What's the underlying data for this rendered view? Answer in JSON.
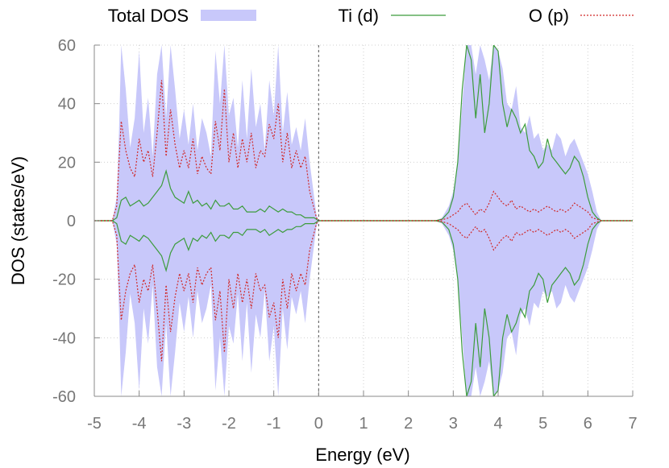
{
  "chart_data": {
    "type": "area",
    "title": "",
    "xlabel": "Energy (eV)",
    "ylabel": "DOS (states/eV)",
    "xlim": [
      -5,
      7
    ],
    "ylim": [
      -60,
      60
    ],
    "xticks": [
      "-5",
      "-4",
      "-3",
      "-2",
      "-1",
      "0",
      "1",
      "2",
      "3",
      "4",
      "5",
      "6",
      "7"
    ],
    "yticks": [
      "60",
      "40",
      "20",
      "0",
      "-20",
      "-40",
      "-60"
    ],
    "grid": true,
    "legend_position": "top",
    "fermi_level": 0,
    "mirrored": true,
    "series": [
      {
        "name": "Total DOS",
        "style": "filled-area",
        "color": "#c8c8fa",
        "x": [
          -5.0,
          -4.6,
          -4.5,
          -4.45,
          -4.4,
          -4.3,
          -4.2,
          -4.1,
          -4.0,
          -3.9,
          -3.8,
          -3.7,
          -3.6,
          -3.5,
          -3.4,
          -3.3,
          -3.2,
          -3.1,
          -3.0,
          -2.9,
          -2.8,
          -2.7,
          -2.6,
          -2.5,
          -2.4,
          -2.3,
          -2.2,
          -2.1,
          -2.0,
          -1.9,
          -1.8,
          -1.7,
          -1.6,
          -1.5,
          -1.4,
          -1.3,
          -1.2,
          -1.1,
          -1.0,
          -0.9,
          -0.8,
          -0.7,
          -0.6,
          -0.5,
          -0.4,
          -0.3,
          -0.2,
          -0.1,
          -0.05,
          0.0,
          2.6,
          2.75,
          2.9,
          3.0,
          3.1,
          3.2,
          3.3,
          3.4,
          3.5,
          3.6,
          3.7,
          3.8,
          3.9,
          4.0,
          4.1,
          4.2,
          4.3,
          4.4,
          4.5,
          4.6,
          4.7,
          4.8,
          4.9,
          5.0,
          5.1,
          5.2,
          5.3,
          5.4,
          5.5,
          5.6,
          5.7,
          5.8,
          5.9,
          6.0,
          6.1,
          6.2,
          6.3,
          7.0
        ],
        "values": [
          0,
          0,
          8,
          30,
          60,
          45,
          25,
          35,
          58,
          30,
          42,
          22,
          50,
          60,
          35,
          60,
          45,
          28,
          38,
          26,
          40,
          24,
          35,
          30,
          22,
          58,
          40,
          60,
          36,
          42,
          25,
          48,
          28,
          52,
          32,
          40,
          24,
          48,
          36,
          60,
          30,
          44,
          26,
          32,
          24,
          35,
          20,
          8,
          2,
          0,
          0,
          1,
          5,
          10,
          20,
          40,
          60,
          60,
          50,
          60,
          55,
          48,
          60,
          58,
          52,
          40,
          38,
          46,
          32,
          30,
          36,
          28,
          30,
          24,
          26,
          24,
          30,
          28,
          22,
          26,
          28,
          24,
          20,
          16,
          10,
          3,
          0,
          0
        ]
      },
      {
        "name": "Ti (d)",
        "style": "solid-line",
        "color": "#3c9c3c",
        "x": [
          -5.0,
          -4.6,
          -4.5,
          -4.45,
          -4.4,
          -4.3,
          -4.2,
          -4.1,
          -4.0,
          -3.9,
          -3.8,
          -3.7,
          -3.6,
          -3.5,
          -3.4,
          -3.3,
          -3.2,
          -3.1,
          -3.0,
          -2.9,
          -2.8,
          -2.7,
          -2.6,
          -2.5,
          -2.4,
          -2.3,
          -2.2,
          -2.1,
          -2.0,
          -1.9,
          -1.8,
          -1.7,
          -1.6,
          -1.5,
          -1.4,
          -1.3,
          -1.2,
          -1.1,
          -1.0,
          -0.9,
          -0.8,
          -0.7,
          -0.6,
          -0.5,
          -0.4,
          -0.3,
          -0.2,
          -0.1,
          -0.05,
          0.0,
          2.6,
          2.75,
          2.9,
          3.0,
          3.1,
          3.2,
          3.3,
          3.4,
          3.5,
          3.6,
          3.7,
          3.8,
          3.9,
          4.0,
          4.1,
          4.2,
          4.3,
          4.4,
          4.5,
          4.6,
          4.7,
          4.8,
          4.9,
          5.0,
          5.1,
          5.2,
          5.3,
          5.4,
          5.5,
          5.6,
          5.7,
          5.8,
          5.9,
          6.0,
          6.1,
          6.2,
          6.3,
          7.0
        ],
        "values": [
          0,
          0,
          1,
          4,
          7,
          8,
          5,
          6,
          7,
          5,
          6,
          8,
          10,
          12,
          17,
          11,
          8,
          7,
          6,
          10,
          6,
          7,
          5,
          6,
          4,
          7,
          5,
          5,
          6,
          4,
          4,
          5,
          3,
          3,
          3,
          4,
          3,
          5,
          4,
          3,
          4,
          3,
          3,
          2,
          2,
          1,
          1,
          1,
          0.5,
          0,
          0,
          0.5,
          3,
          8,
          20,
          45,
          60,
          55,
          35,
          50,
          30,
          40,
          60,
          58,
          40,
          32,
          38,
          35,
          30,
          33,
          24,
          22,
          18,
          20,
          28,
          22,
          20,
          18,
          16,
          18,
          22,
          20,
          15,
          8,
          3,
          1,
          0,
          0
        ]
      },
      {
        "name": "O (p)",
        "style": "dotted-line",
        "color": "#d02828",
        "x": [
          -5.0,
          -4.6,
          -4.5,
          -4.45,
          -4.4,
          -4.3,
          -4.2,
          -4.1,
          -4.0,
          -3.9,
          -3.8,
          -3.7,
          -3.6,
          -3.5,
          -3.4,
          -3.3,
          -3.2,
          -3.1,
          -3.0,
          -2.9,
          -2.8,
          -2.7,
          -2.6,
          -2.5,
          -2.4,
          -2.3,
          -2.2,
          -2.1,
          -2.0,
          -1.9,
          -1.8,
          -1.7,
          -1.6,
          -1.5,
          -1.4,
          -1.3,
          -1.2,
          -1.1,
          -1.0,
          -0.9,
          -0.8,
          -0.7,
          -0.6,
          -0.5,
          -0.4,
          -0.3,
          -0.2,
          -0.1,
          -0.05,
          0.0,
          2.6,
          2.75,
          2.9,
          3.0,
          3.1,
          3.2,
          3.3,
          3.4,
          3.5,
          3.6,
          3.7,
          3.8,
          3.9,
          4.0,
          4.1,
          4.2,
          4.3,
          4.4,
          4.5,
          4.6,
          4.7,
          4.8,
          4.9,
          5.0,
          5.1,
          5.2,
          5.3,
          5.4,
          5.5,
          5.6,
          5.7,
          5.8,
          5.9,
          6.0,
          6.1,
          6.2,
          6.3,
          7.0
        ],
        "values": [
          0,
          0,
          5,
          20,
          34,
          24,
          18,
          15,
          28,
          20,
          24,
          15,
          30,
          48,
          22,
          38,
          26,
          18,
          24,
          18,
          28,
          16,
          22,
          18,
          16,
          34,
          24,
          45,
          20,
          30,
          18,
          28,
          20,
          30,
          18,
          24,
          22,
          33,
          28,
          40,
          20,
          30,
          18,
          24,
          18,
          22,
          10,
          4,
          1,
          0,
          0,
          0.3,
          1,
          2,
          3,
          5,
          6,
          4,
          2,
          4,
          3,
          6,
          10,
          8,
          6,
          5,
          7,
          4,
          5,
          4,
          3,
          4,
          3,
          4,
          5,
          4,
          3,
          4,
          3,
          4,
          6,
          5,
          4,
          3,
          1,
          0.5,
          0,
          0
        ]
      }
    ]
  }
}
